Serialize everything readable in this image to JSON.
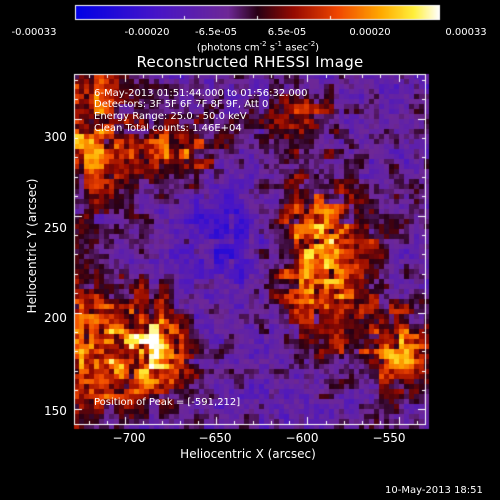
{
  "colorbar": {
    "tick_labels": [
      "-0.00033",
      "-0.00020",
      "-6.5e-05",
      "6.5e-05",
      "0.00020",
      "0.00033"
    ],
    "units_text": "(photons cm",
    "units_exp1": "-2",
    "units_mid": " s",
    "units_exp2": "-1",
    "units_end": " asec",
    "units_exp3": "-2",
    "units_close": ")",
    "range": [
      -0.00033,
      0.00033
    ]
  },
  "plot": {
    "title": "Reconstructed RHESSI Image",
    "annotations": {
      "time_range": "6-May-2013 01:51:44.000 to 01:56:32.000",
      "detectors": "Detectors: 3F 5F 6F 7F 8F 9F, Att 0",
      "energy_range": "Energy Range: 25.0 - 50.0 keV",
      "algorithm": "Clean     Total counts: 1.46E+04",
      "peak_position": "Position of Peak = [-591,212]"
    },
    "x_axis": {
      "label": "Heliocentric X (arcsec)",
      "range": [
        -728,
        -535
      ],
      "ticks": [
        -700,
        -650,
        -600,
        -550
      ],
      "tick_labels": [
        "−700",
        "−650",
        "−600",
        "−550"
      ]
    },
    "y_axis": {
      "label": "Heliocentric Y (arcsec)",
      "range": [
        142,
        323
      ],
      "ticks": [
        150,
        200,
        250,
        300
      ],
      "tick_labels": [
        "150",
        "200",
        "250",
        "300"
      ]
    }
  },
  "footer": {
    "timestamp": "10-May-2013 18:51"
  },
  "colors": {
    "background": "#000000",
    "text": "#ffffff"
  }
}
